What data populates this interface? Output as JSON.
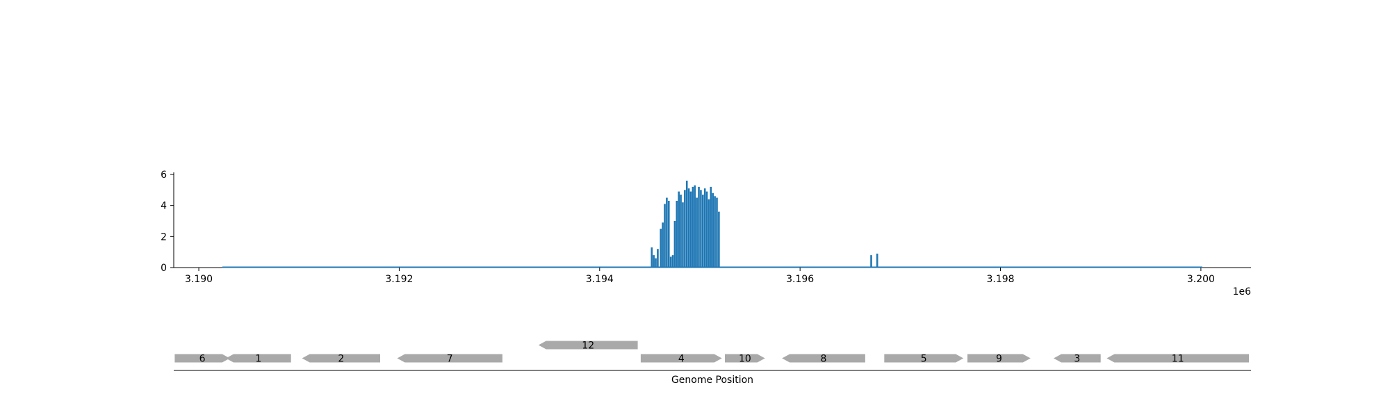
{
  "chart_data": {
    "type": "bar",
    "title": "",
    "xlabel": "Genome Position",
    "ylabel": "",
    "x_offset_label": "1e6",
    "xlim": [
      3.18975,
      3.2005
    ],
    "ylim": [
      0,
      6.1
    ],
    "x_ticks": [
      3.19,
      3.192,
      3.194,
      3.196,
      3.198,
      3.2
    ],
    "x_tick_labels": [
      "3.190",
      "3.192",
      "3.194",
      "3.196",
      "3.198",
      "3.200"
    ],
    "y_ticks": [
      0,
      2,
      4,
      6
    ],
    "y_tick_labels": [
      "0",
      "2",
      "4",
      "6"
    ],
    "color": "#1f77b4",
    "grid": false,
    "coverage": {
      "x": [
        3.19452,
        3.19454,
        3.19456,
        3.19458,
        3.19461,
        3.19463,
        3.19465,
        3.19467,
        3.19469,
        3.19471,
        3.19473,
        3.19475,
        3.19477,
        3.19479,
        3.19481,
        3.19483,
        3.19485,
        3.19487,
        3.19489,
        3.19491,
        3.19493,
        3.19495,
        3.19497,
        3.19499,
        3.19501,
        3.19503,
        3.19505,
        3.19507,
        3.19509,
        3.19511,
        3.19513,
        3.19515,
        3.19517,
        3.19519,
        3.19671,
        3.19677
      ],
      "y": [
        1.3,
        0.8,
        0.6,
        1.2,
        2.5,
        2.9,
        4.1,
        4.5,
        4.3,
        0.7,
        0.8,
        3.0,
        4.3,
        4.9,
        4.7,
        4.2,
        5.0,
        5.6,
        5.1,
        4.9,
        5.2,
        5.3,
        4.5,
        5.2,
        5.0,
        4.7,
        5.1,
        4.9,
        4.4,
        5.2,
        4.8,
        4.6,
        4.5,
        3.6,
        0.8,
        0.9
      ]
    },
    "genes": [
      {
        "label": "6",
        "start": 3.18976,
        "end": 3.19031,
        "strand": "+",
        "row": 0
      },
      {
        "label": "1",
        "start": 3.19027,
        "end": 3.19092,
        "strand": "-",
        "row": 0
      },
      {
        "label": "2",
        "start": 3.19103,
        "end": 3.19181,
        "strand": "-",
        "row": 0
      },
      {
        "label": "7",
        "start": 3.19198,
        "end": 3.19303,
        "strand": "-",
        "row": 0
      },
      {
        "label": "12",
        "start": 3.19339,
        "end": 3.19438,
        "strand": "-",
        "row": 1
      },
      {
        "label": "4",
        "start": 3.19441,
        "end": 3.19522,
        "strand": "+",
        "row": 0
      },
      {
        "label": "10",
        "start": 3.19525,
        "end": 3.19565,
        "strand": "+",
        "row": 0
      },
      {
        "label": "8",
        "start": 3.19582,
        "end": 3.19665,
        "strand": "-",
        "row": 0
      },
      {
        "label": "5",
        "start": 3.19684,
        "end": 3.19763,
        "strand": "+",
        "row": 0
      },
      {
        "label": "9",
        "start": 3.19767,
        "end": 3.1983,
        "strand": "+",
        "row": 0
      },
      {
        "label": "3",
        "start": 3.19853,
        "end": 3.199,
        "strand": "-",
        "row": 0
      },
      {
        "label": "11",
        "start": 3.19906,
        "end": 3.20048,
        "strand": "-",
        "row": 0
      }
    ]
  }
}
